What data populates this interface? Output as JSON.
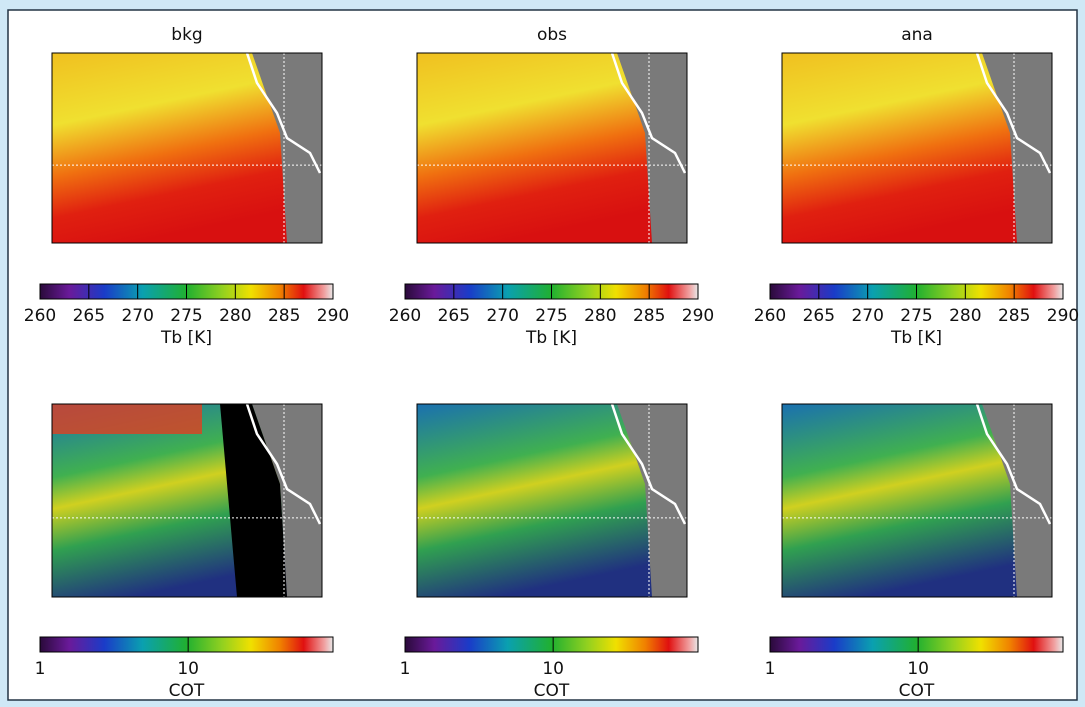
{
  "chart_data": [
    {
      "type": "colormap",
      "title": "bkg",
      "colorbar": {
        "label": "Tb [K]",
        "xlim": [
          260,
          290
        ],
        "xticks": [
          260,
          265,
          270,
          275,
          280,
          285,
          290
        ],
        "log": false
      }
    },
    {
      "type": "colormap",
      "title": "obs",
      "colorbar": {
        "label": "Tb [K]",
        "xlim": [
          260,
          290
        ],
        "xticks": [
          260,
          265,
          270,
          275,
          280,
          285,
          290
        ],
        "log": false
      }
    },
    {
      "type": "colormap",
      "title": "ana",
      "colorbar": {
        "label": "Tb [K]",
        "xlim": [
          260,
          290
        ],
        "xticks": [
          260,
          265,
          270,
          275,
          280,
          285,
          290
        ],
        "log": false
      }
    },
    {
      "type": "colormap",
      "colorbar": {
        "label": "COT",
        "xlim": [
          1,
          95
        ],
        "xticks": [
          1,
          10
        ],
        "log": true
      }
    },
    {
      "type": "colormap",
      "colorbar": {
        "label": "COT",
        "xlim": [
          1,
          95
        ],
        "xticks": [
          1,
          10
        ],
        "log": true
      }
    },
    {
      "type": "colormap",
      "colorbar": {
        "label": "COT",
        "xlim": [
          1,
          95
        ],
        "xticks": [
          1,
          10
        ],
        "log": true
      }
    }
  ]
}
